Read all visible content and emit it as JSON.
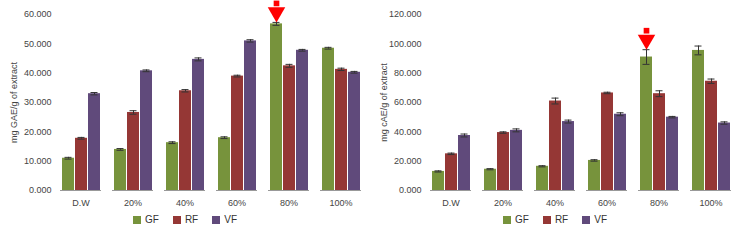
{
  "chart_data": [
    {
      "type": "bar",
      "ylabel": "mg GAE/g of extract",
      "categories": [
        "D.W",
        "20%",
        "40%",
        "60%",
        "80%",
        "100%"
      ],
      "series": [
        {
          "name": "GF",
          "color": "#77933C",
          "values": [
            11.0,
            14.0,
            16.3,
            18.0,
            56.8,
            48.5
          ],
          "errors": [
            0.3,
            0.3,
            0.3,
            0.3,
            0.5,
            0.3
          ]
        },
        {
          "name": "RF",
          "color": "#953735",
          "values": [
            17.8,
            26.6,
            34.0,
            39.0,
            42.5,
            41.3
          ],
          "errors": [
            0.3,
            0.6,
            0.4,
            0.3,
            0.5,
            0.4
          ]
        },
        {
          "name": "VF",
          "color": "#604A7B",
          "values": [
            33.0,
            40.8,
            44.7,
            51.0,
            47.8,
            40.3
          ],
          "errors": [
            0.4,
            0.3,
            0.5,
            0.4,
            0.3,
            0.3
          ]
        }
      ],
      "ylim": [
        0,
        60
      ],
      "yticks": [
        {
          "value": 0,
          "label": "0.000"
        },
        {
          "value": 10,
          "label": "10.000"
        },
        {
          "value": 20,
          "label": "20.000"
        },
        {
          "value": 30,
          "label": "30.000"
        },
        {
          "value": 40,
          "label": "40.000"
        },
        {
          "value": 50,
          "label": "50.000"
        },
        {
          "value": 60,
          "label": "60.000"
        }
      ],
      "grid": false,
      "legend": "bottom",
      "annotations": [
        {
          "type": "arrow",
          "category": "80%",
          "series": "GF"
        }
      ]
    },
    {
      "type": "bar",
      "ylabel": "mg cAE/g of extract",
      "categories": [
        "D.W",
        "20%",
        "40%",
        "60%",
        "80%",
        "100%"
      ],
      "series": [
        {
          "name": "GF",
          "color": "#77933C",
          "values": [
            13.0,
            14.5,
            16.5,
            20.5,
            91.0,
            95.5
          ],
          "errors": [
            0.4,
            0.4,
            0.4,
            0.5,
            5.0,
            3.0
          ]
        },
        {
          "name": "RF",
          "color": "#953735",
          "values": [
            25.0,
            39.5,
            61.0,
            66.5,
            66.0,
            74.5
          ],
          "errors": [
            0.5,
            0.5,
            2.0,
            0.5,
            2.0,
            1.5
          ]
        },
        {
          "name": "VF",
          "color": "#604A7B",
          "values": [
            37.5,
            41.0,
            47.0,
            52.0,
            50.0,
            46.0
          ],
          "errors": [
            1.0,
            1.0,
            1.0,
            1.0,
            0.5,
            0.8
          ]
        }
      ],
      "ylim": [
        0,
        120
      ],
      "yticks": [
        {
          "value": 0,
          "label": "0.000"
        },
        {
          "value": 20,
          "label": "20.000"
        },
        {
          "value": 40,
          "label": "40.000"
        },
        {
          "value": 60,
          "label": "60.000"
        },
        {
          "value": 80,
          "label": "80.000"
        },
        {
          "value": 100,
          "label": "100.000"
        },
        {
          "value": 120,
          "label": "120.000"
        }
      ],
      "grid": false,
      "legend": "bottom",
      "annotations": [
        {
          "type": "arrow",
          "category": "80%",
          "series": "GF"
        }
      ]
    }
  ]
}
